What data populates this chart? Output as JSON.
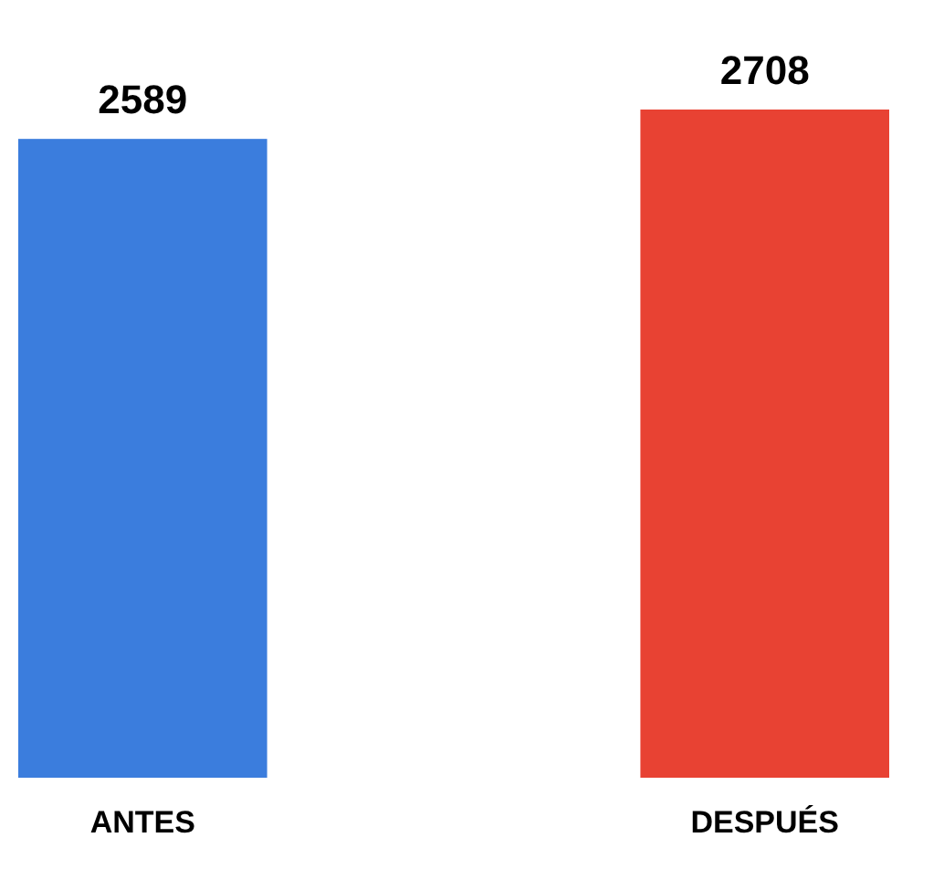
{
  "chart_data": {
    "type": "bar",
    "categories": [
      "ANTES",
      "DESPUÉS"
    ],
    "values": [
      2589,
      2708
    ],
    "colors": [
      "#3b7ddd",
      "#e84233"
    ],
    "data_labels": true
  }
}
